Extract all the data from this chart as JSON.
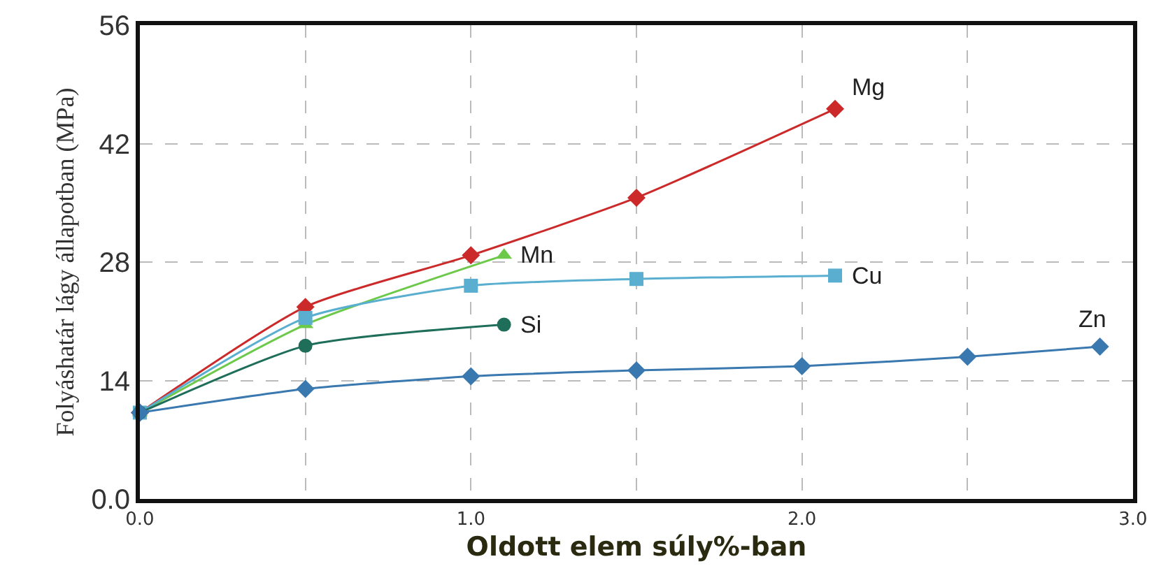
{
  "chart_data": {
    "type": "line",
    "xlabel": "Oldott elem súly%-ban",
    "ylabel": "Folyáshatár lágy állapotban (MPa)",
    "xlim": [
      0,
      3
    ],
    "xticks": [
      {
        "value": 0,
        "label": "0.0"
      },
      {
        "value": 0.5,
        "label": null
      },
      {
        "value": 1,
        "label": "1.0"
      },
      {
        "value": 1.5,
        "label": null
      },
      {
        "value": 2,
        "label": "2.0"
      },
      {
        "value": 2.5,
        "label": null
      },
      {
        "value": 3,
        "label": "3.0"
      }
    ],
    "ylim": [
      0,
      56
    ],
    "yticks": [
      {
        "value": 0,
        "label": "0.0"
      },
      14,
      28,
      42,
      56
    ],
    "grid": true,
    "legend": false,
    "line_style": "solid",
    "series": [
      {
        "name": "Mg",
        "color": "#cc2a2a",
        "marker": "diamond",
        "x": [
          0,
          0.5,
          1,
          1.5,
          2.1
        ],
        "values": [
          10.2,
          22.7,
          28.8,
          35.6,
          46.1
        ]
      },
      {
        "name": "Mn",
        "color": "#6cc94a",
        "marker": "triangle",
        "x": [
          0,
          0.5,
          1.1
        ],
        "values": [
          10.2,
          20.6,
          28.8
        ]
      },
      {
        "name": "Cu",
        "color": "#5aaed0",
        "marker": "square",
        "x": [
          0,
          0.5,
          1,
          1.5,
          2.1
        ],
        "values": [
          10.2,
          21.4,
          25.2,
          26,
          26.4
        ]
      },
      {
        "name": "Si",
        "color": "#1e6e5a",
        "marker": "circle",
        "x": [
          0,
          0.5,
          1.1
        ],
        "values": [
          10.2,
          18.1,
          20.6
        ]
      },
      {
        "name": "Zn",
        "color": "#3a78b0",
        "marker": "diamond",
        "x": [
          0,
          0.5,
          1,
          1.5,
          2,
          2.5,
          2.9
        ],
        "values": [
          10.2,
          13,
          14.5,
          15.2,
          15.7,
          16.8,
          18
        ]
      }
    ]
  }
}
